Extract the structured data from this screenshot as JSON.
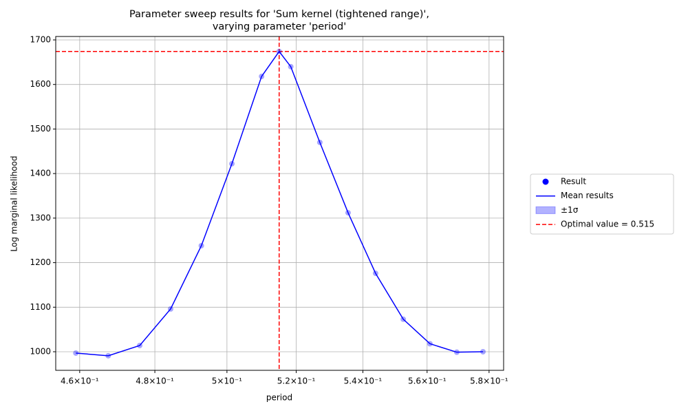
{
  "chart_data": {
    "type": "scatter_line",
    "title": [
      "Parameter sweep results for 'Sum kernel (tightened range)',",
      "varying parameter 'period'"
    ],
    "x_label": "period",
    "y_label": "Log marginal likelihood",
    "x_scale": "log",
    "grid": true,
    "x": [
      0.459,
      0.4675,
      0.4759,
      0.4843,
      0.4928,
      0.5014,
      0.5099,
      0.515,
      0.5184,
      0.527,
      0.5355,
      0.5439,
      0.5525,
      0.5609,
      0.5695,
      0.578
    ],
    "series": [
      {
        "name": "Result",
        "kind": "points",
        "color": "#0000ff",
        "values": [
          997,
          991,
          1014,
          1096,
          1238,
          1422,
          1618,
          1674,
          1640,
          1470,
          1312,
          1176,
          1073,
          1018,
          999,
          1000
        ]
      },
      {
        "name": "Mean results",
        "kind": "line",
        "color": "#0000ff",
        "values": [
          997,
          991,
          1014,
          1096,
          1238,
          1422,
          1618,
          1674,
          1640,
          1470,
          1312,
          1176,
          1073,
          1018,
          999,
          1000
        ]
      }
    ],
    "band": {
      "name": "±1σ",
      "color": "#0000ff"
    },
    "optimal": {
      "name": "Optimal value = 0.515",
      "x": 0.515,
      "y": 1674,
      "color": "#ff0000"
    },
    "xlim": [
      0.4538,
      0.5848
    ],
    "ylim": [
      958.3,
      1707.7
    ],
    "xticks": [
      {
        "value": 0.46,
        "label": "4.6×10⁻¹"
      },
      {
        "value": 0.48,
        "label": "4.8×10⁻¹"
      },
      {
        "value": 0.5,
        "label": "5×10⁻¹"
      },
      {
        "value": 0.52,
        "label": "5.2×10⁻¹"
      },
      {
        "value": 0.54,
        "label": "5.4×10⁻¹"
      },
      {
        "value": 0.56,
        "label": "5.6×10⁻¹"
      },
      {
        "value": 0.58,
        "label": "5.8×10⁻¹"
      }
    ],
    "yticks": [
      1000,
      1100,
      1200,
      1300,
      1400,
      1500,
      1600,
      1700
    ],
    "legend": "outside right"
  }
}
